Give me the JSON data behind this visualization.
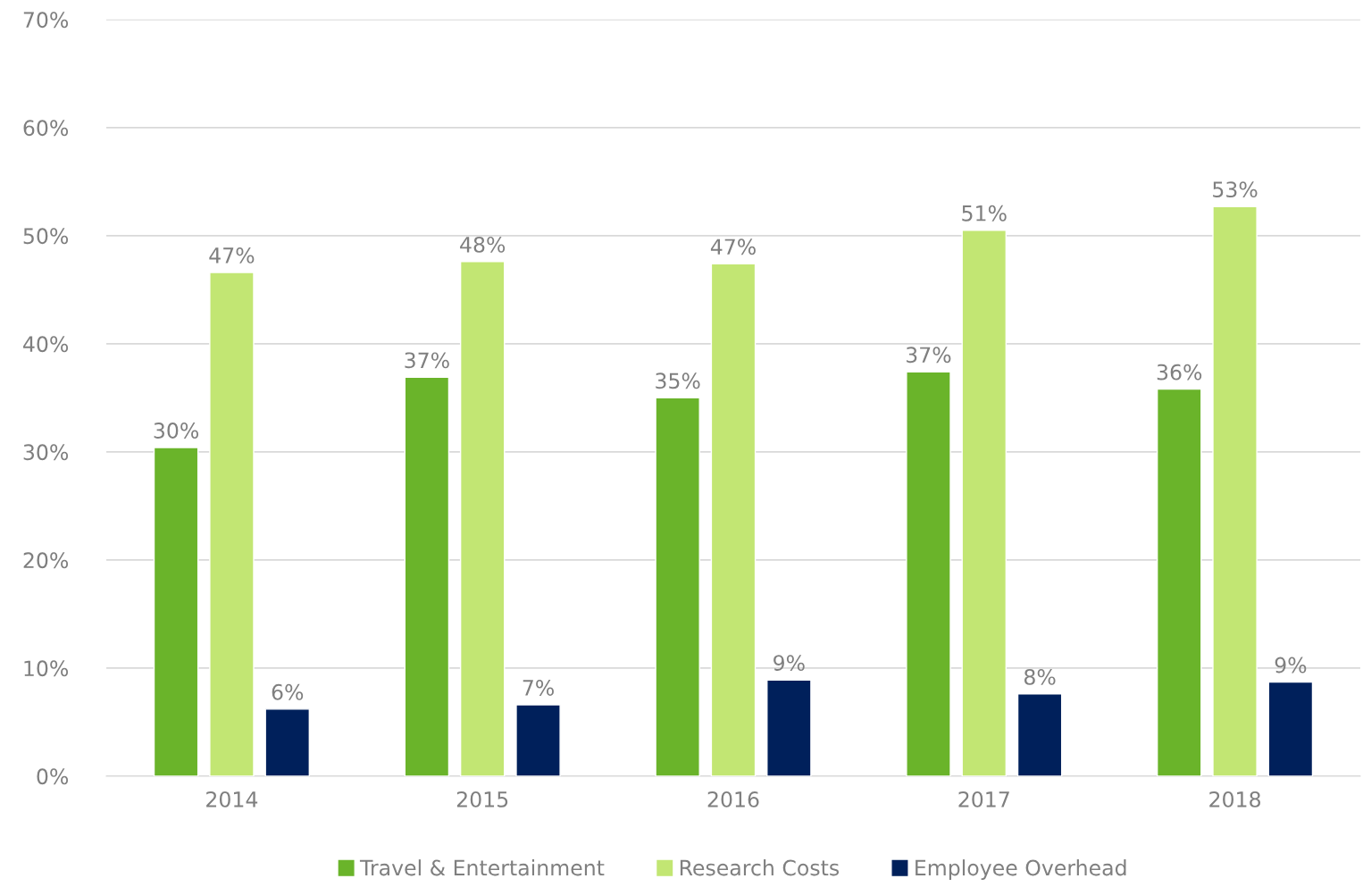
{
  "chart_data": {
    "type": "bar",
    "categories": [
      "2014",
      "2015",
      "2016",
      "2017",
      "2018"
    ],
    "series": [
      {
        "name": "Travel & Entertainment",
        "color": "#6ab42a",
        "values": [
          30.4,
          36.9,
          35.0,
          37.4,
          35.8
        ],
        "value_labels": [
          "30%",
          "37%",
          "35%",
          "37%",
          "36%"
        ]
      },
      {
        "name": "Research Costs",
        "color": "#c2e673",
        "values": [
          46.6,
          47.6,
          47.4,
          50.5,
          52.7
        ],
        "value_labels": [
          "47%",
          "48%",
          "47%",
          "51%",
          "53%"
        ]
      },
      {
        "name": "Employee Overhead",
        "color": "#00205b",
        "values": [
          6.2,
          6.6,
          8.9,
          7.6,
          8.7
        ],
        "value_labels": [
          "6%",
          "7%",
          "9%",
          "8%",
          "9%"
        ]
      }
    ],
    "ylim": [
      0,
      70
    ],
    "yticks": [
      {
        "value": 0,
        "label": "0%"
      },
      {
        "value": 10,
        "label": "10%"
      },
      {
        "value": 20,
        "label": "20%"
      },
      {
        "value": 30,
        "label": "30%"
      },
      {
        "value": 40,
        "label": "40%"
      },
      {
        "value": 50,
        "label": "50%"
      },
      {
        "value": 60,
        "label": "60%"
      },
      {
        "value": 70,
        "label": "70%"
      }
    ],
    "grid": "y",
    "legend": "bottom"
  }
}
